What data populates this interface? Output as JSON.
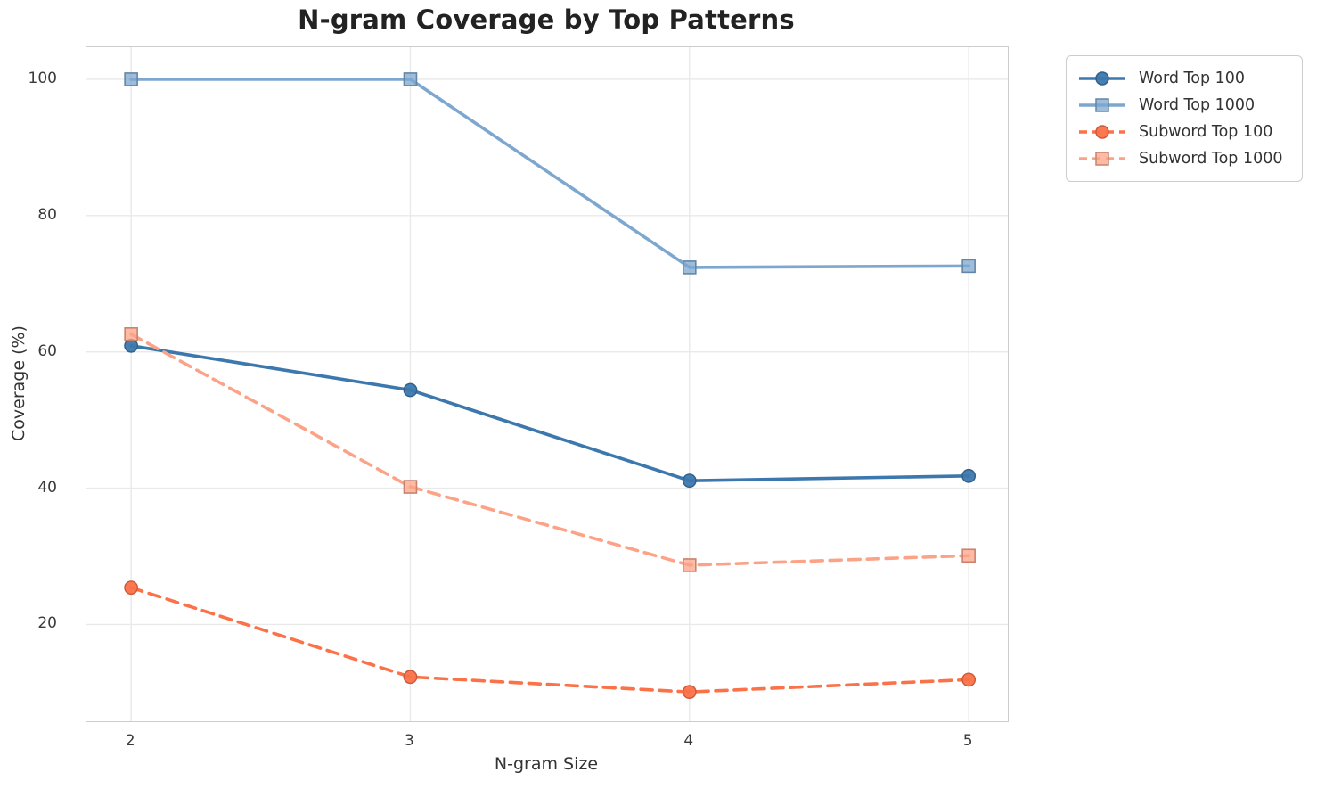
{
  "chart_data": {
    "type": "line",
    "title": "N-gram Coverage by Top Patterns",
    "xlabel": "N-gram Size",
    "ylabel": "Coverage (%)",
    "x": [
      2,
      3,
      4,
      5
    ],
    "xtick_labels": [
      "2",
      "3",
      "4",
      "5"
    ],
    "yticks": [
      20,
      40,
      60,
      80,
      100
    ],
    "xlim": [
      1.84,
      5.14
    ],
    "ylim": [
      5.8,
      104.7
    ],
    "grid": true,
    "legend_position": "outside-top-right",
    "colors": {
      "background": "#ffffff",
      "grid": "#e9e9e9",
      "spine": "#cccccc",
      "tick_text": "#3a3a3a",
      "title_text": "#222222"
    },
    "series": [
      {
        "name": "Word Top 100",
        "color": "#3c78ad",
        "marker": "circle",
        "linestyle": "solid",
        "values": [
          60.9,
          54.4,
          41.1,
          41.8
        ]
      },
      {
        "name": "Word Top 1000",
        "color": "#7da7cf",
        "marker": "square",
        "linestyle": "solid",
        "values": [
          100.0,
          100.0,
          72.4,
          72.6
        ]
      },
      {
        "name": "Subword Top 100",
        "color": "#fb7148",
        "marker": "circle",
        "linestyle": "dashed",
        "values": [
          25.4,
          12.3,
          10.1,
          11.9
        ]
      },
      {
        "name": "Subword Top 1000",
        "color": "#fca387",
        "marker": "square",
        "linestyle": "dashed",
        "values": [
          62.6,
          40.2,
          28.7,
          30.1
        ]
      }
    ]
  }
}
